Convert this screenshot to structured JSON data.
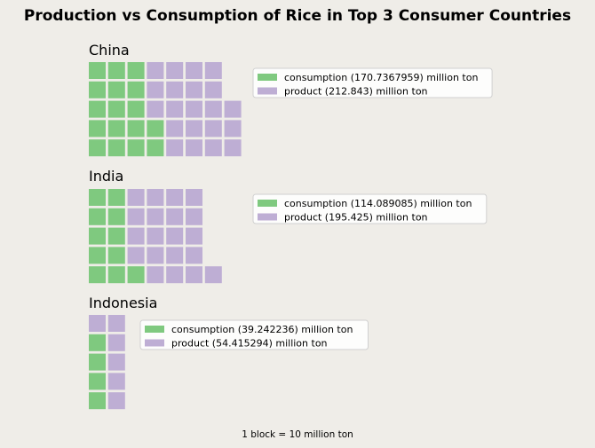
{
  "chart_data": {
    "type": "waffle",
    "title": "Production vs Consumption of Rice in Top 3 Consumer Countries",
    "footnote": "1 block = 10 million ton",
    "colors": {
      "consumption": "#7fc97f",
      "product": "#beaed4"
    },
    "panels": [
      {
        "name": "China",
        "rows": 5,
        "series": [
          {
            "label": "consumption (170.7367959) million ton",
            "value": 170.7367959,
            "blocks": 17
          },
          {
            "label": "product (212.843) million ton",
            "value": 212.843,
            "blocks": 21
          }
        ]
      },
      {
        "name": "India",
        "rows": 5,
        "series": [
          {
            "label": "consumption (114.089085) million ton",
            "value": 114.089085,
            "blocks": 11
          },
          {
            "label": "product (195.425) million ton",
            "value": 195.425,
            "blocks": 20
          }
        ]
      },
      {
        "name": "Indonesia",
        "rows": 5,
        "series": [
          {
            "label": "consumption (39.242236) million ton",
            "value": 39.242236,
            "blocks": 4
          },
          {
            "label": "product (54.415294) million ton",
            "value": 54.415294,
            "blocks": 6
          }
        ]
      }
    ]
  }
}
